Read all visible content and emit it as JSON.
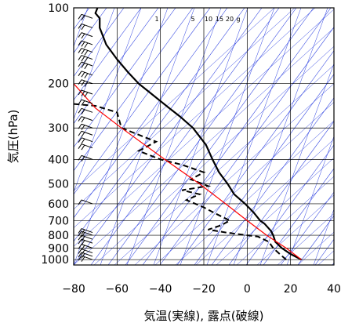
{
  "chart_data": {
    "type": "line",
    "xlabel": "気温(実線), 露点(破線)",
    "ylabel": "気圧(hPa)",
    "x_ticks": [
      -80,
      -60,
      -40,
      -20,
      0,
      20,
      40
    ],
    "x_tick_labels": [
      "−80",
      "−60",
      "−40",
      "−20",
      "0",
      "20",
      "40"
    ],
    "xlim": [
      -80,
      40
    ],
    "y_scale": "log",
    "y_ticks": [
      100,
      200,
      300,
      400,
      500,
      600,
      700,
      800,
      900,
      1000
    ],
    "y_tick_labels": [
      "100",
      "200",
      "300",
      "400",
      "500",
      "600",
      "700",
      "800",
      "900",
      "1000"
    ],
    "ylim": [
      1050,
      100
    ],
    "mixing_ratio_labels": [
      "1",
      "5",
      "10",
      "15",
      "20",
      "g"
    ],
    "grid": true,
    "series": [
      {
        "style": "solid-black",
        "points": [
          [
            25,
            1000
          ],
          [
            20,
            950
          ],
          [
            16,
            900
          ],
          [
            13,
            850
          ],
          [
            12,
            800
          ],
          [
            11,
            770
          ],
          [
            8,
            720
          ],
          [
            6,
            700
          ],
          [
            3,
            650
          ],
          [
            -1,
            600
          ],
          [
            -6,
            550
          ],
          [
            -9,
            500
          ],
          [
            -13,
            450
          ],
          [
            -16,
            400
          ],
          [
            -19,
            350
          ],
          [
            -25,
            300
          ],
          [
            -31,
            270
          ],
          [
            -36,
            250
          ],
          [
            -44,
            220
          ],
          [
            -50,
            200
          ],
          [
            -55,
            180
          ],
          [
            -60,
            160
          ],
          [
            -65,
            140
          ],
          [
            -68,
            120
          ],
          [
            -68,
            110
          ],
          [
            -70,
            105
          ],
          [
            -69,
            100
          ]
        ]
      },
      {
        "style": "dashed-black",
        "points": [
          [
            18,
            1000
          ],
          [
            15,
            950
          ],
          [
            12,
            900
          ],
          [
            10,
            850
          ],
          [
            5,
            810
          ],
          [
            -5,
            790
          ],
          [
            -10,
            780
          ],
          [
            -18,
            760
          ],
          [
            -12,
            730
          ],
          [
            -8,
            700
          ],
          [
            -14,
            660
          ],
          [
            -20,
            620
          ],
          [
            -28,
            580
          ],
          [
            -22,
            550
          ],
          [
            -30,
            530
          ],
          [
            -18,
            510
          ],
          [
            -26,
            480
          ],
          [
            -20,
            450
          ],
          [
            -30,
            420
          ],
          [
            -40,
            400
          ],
          [
            -50,
            370
          ],
          [
            -42,
            340
          ],
          [
            -58,
            300
          ],
          [
            -60,
            260
          ],
          [
            -70,
            245
          ],
          [
            -82,
            240
          ]
        ]
      },
      {
        "style": "red",
        "points": [
          [
            25,
            1000
          ],
          [
            18,
            900
          ],
          [
            9,
            800
          ],
          [
            0,
            700
          ],
          [
            -10,
            600
          ],
          [
            -22,
            500
          ],
          [
            -38,
            400
          ],
          [
            -58,
            300
          ],
          [
            -70,
            250
          ],
          [
            -80,
            200
          ]
        ]
      }
    ],
    "wind_barbs": [
      {
        "p": 1000,
        "barbs": 2
      },
      {
        "p": 970,
        "barbs": 2
      },
      {
        "p": 940,
        "barbs": 2
      },
      {
        "p": 900,
        "barbs": 2
      },
      {
        "p": 860,
        "barbs": 2
      },
      {
        "p": 830,
        "barbs": 2
      },
      {
        "p": 800,
        "barbs": 2
      },
      {
        "p": 780,
        "barbs": 2
      },
      {
        "p": 600,
        "barbs": 1
      },
      {
        "p": 400,
        "barbs": 2
      },
      {
        "p": 360,
        "barbs": 2
      },
      {
        "p": 340,
        "barbs": 2
      },
      {
        "p": 320,
        "barbs": 2
      },
      {
        "p": 300,
        "barbs": 2
      },
      {
        "p": 280,
        "barbs": 2
      },
      {
        "p": 260,
        "barbs": 2
      },
      {
        "p": 240,
        "barbs": 2
      },
      {
        "p": 220,
        "barbs": 3
      },
      {
        "p": 200,
        "barbs": 3
      },
      {
        "p": 185,
        "barbs": 3
      },
      {
        "p": 170,
        "barbs": 3
      },
      {
        "p": 160,
        "barbs": 3
      },
      {
        "p": 150,
        "barbs": 3
      },
      {
        "p": 140,
        "barbs": 3
      },
      {
        "p": 130,
        "barbs": 2
      },
      {
        "p": 120,
        "barbs": 2
      },
      {
        "p": 110,
        "barbs": 2
      },
      {
        "p": 100,
        "barbs": 2
      }
    ]
  },
  "colors": {
    "grid": "#000000",
    "background_lines": "#2b3fe0",
    "temperature": "#000000",
    "dewpoint": "#000000",
    "parcel": "#ff0000",
    "barbs": "#000000"
  }
}
